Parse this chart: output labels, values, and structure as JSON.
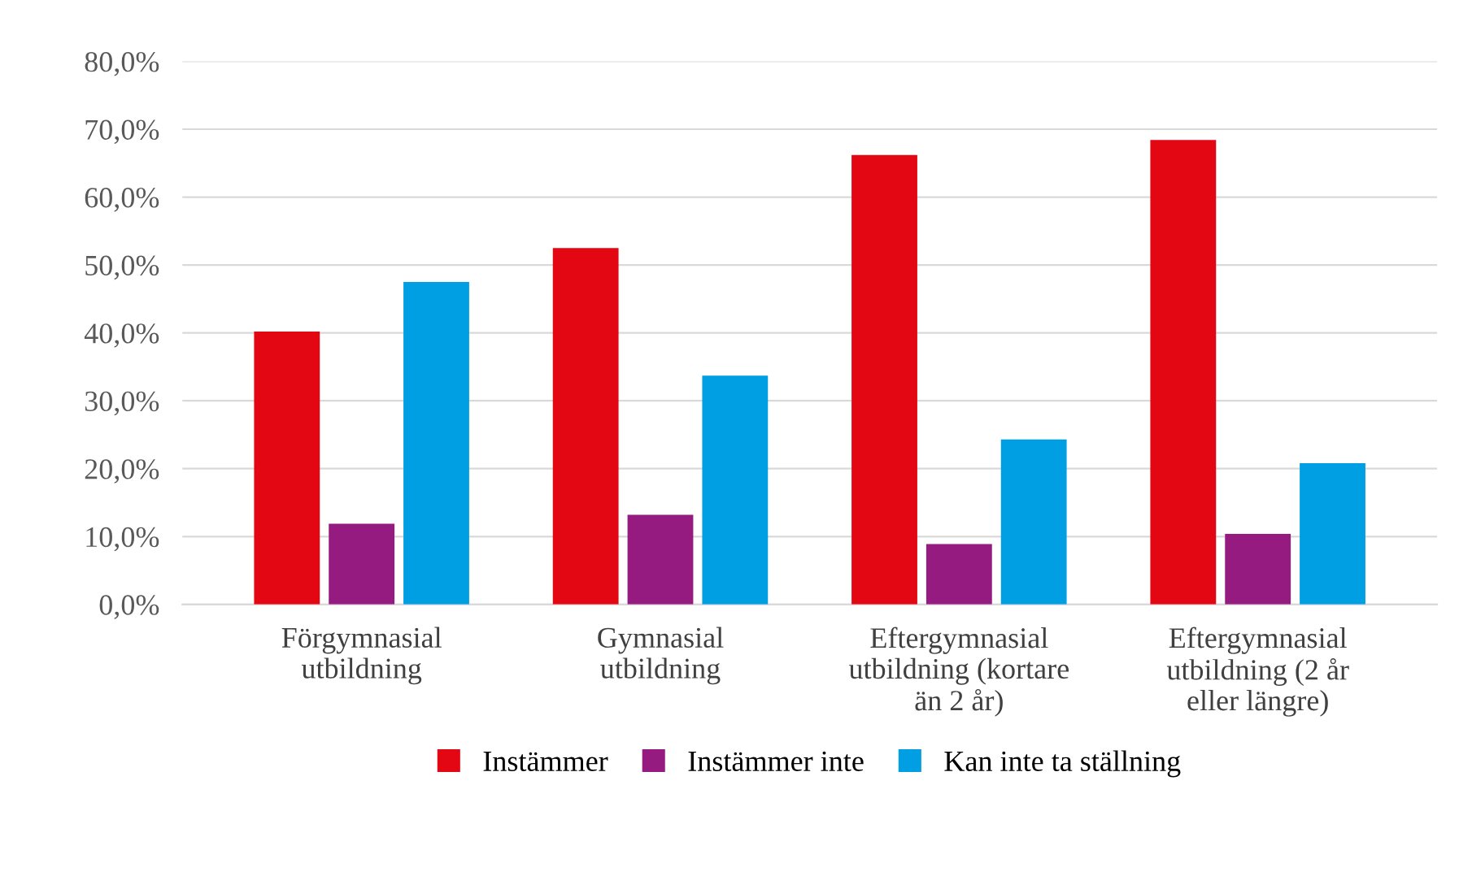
{
  "chart_data": {
    "type": "bar",
    "categories": [
      "Förgymnasial\nutbildning",
      "Gymnasial\nutbildning",
      "Eftergymnasial\nutbildning (kortare\nän 2 år)",
      "Eftergymnasial\nutbildning (2 år\neller längre)"
    ],
    "series": [
      {
        "name": "Instämmer",
        "color": "#e30613",
        "values": [
          40.2,
          52.5,
          66.2,
          68.4
        ]
      },
      {
        "name": "Instämmer inte",
        "color": "#951b81",
        "values": [
          11.9,
          13.2,
          8.9,
          10.4
        ]
      },
      {
        "name": "Kan inte ta ställning",
        "color": "#009fe3",
        "values": [
          47.5,
          33.7,
          24.3,
          20.8
        ]
      }
    ],
    "ylim": [
      0,
      80
    ],
    "yticks": [
      {
        "value": 0,
        "label": "0,0%"
      },
      {
        "value": 10,
        "label": "10,0%"
      },
      {
        "value": 20,
        "label": "20,0%"
      },
      {
        "value": 30,
        "label": "30,0%"
      },
      {
        "value": 40,
        "label": "40,0%"
      },
      {
        "value": 50,
        "label": "50,0%"
      },
      {
        "value": 60,
        "label": "60,0%"
      },
      {
        "value": 70,
        "label": "70,0%"
      },
      {
        "value": 80,
        "label": "80,0%"
      }
    ],
    "grid": "y",
    "legend": "bottom"
  }
}
